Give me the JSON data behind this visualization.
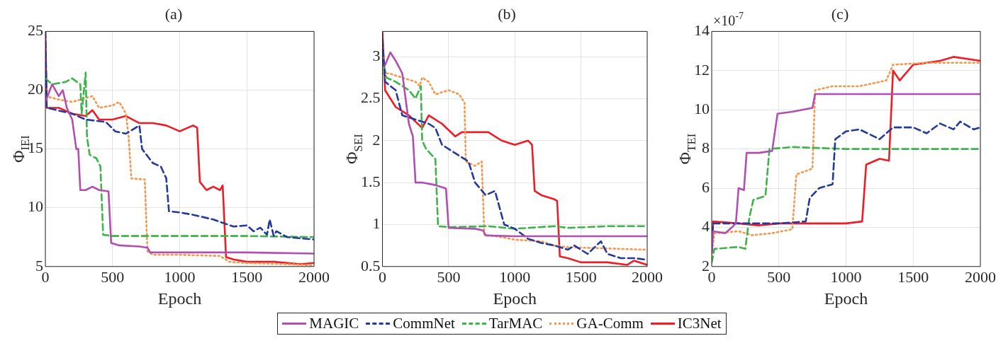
{
  "chart_data": [
    {
      "type": "line",
      "title": "(a)",
      "xlabel": "Epoch",
      "ylabel": "Φ$_{IEI}$",
      "xlim": [
        0,
        2000
      ],
      "xticks": [
        0,
        500,
        1000,
        1500,
        2000
      ],
      "ylim": [
        5,
        25
      ],
      "yticks": [
        5,
        10,
        15,
        20,
        25
      ],
      "grid": true,
      "legend": "bottom",
      "marker": "none",
      "series": [
        {
          "name": "MAGIC",
          "color": "#b04fb0",
          "line_style": "solid",
          "x": [
            0,
            50,
            100,
            130,
            160,
            200,
            230,
            245,
            260,
            300,
            350,
            400,
            470,
            490,
            550,
            700,
            760,
            780,
            1000,
            1500,
            2000
          ],
          "values": [
            19,
            20.5,
            19.5,
            20,
            18.5,
            17.5,
            15,
            15,
            11.5,
            11.5,
            11.8,
            11.5,
            11.4,
            7,
            6.8,
            6.7,
            6.6,
            6.2,
            6.2,
            6.2,
            6.1
          ]
        },
        {
          "name": "CommNet",
          "color": "#23399b",
          "line_style": "dashed",
          "x": [
            0,
            10,
            200,
            300,
            450,
            520,
            600,
            700,
            720,
            800,
            860,
            900,
            920,
            1000,
            1100,
            1250,
            1300,
            1400,
            1500,
            1550,
            1600,
            1650,
            1670,
            1700,
            1720,
            1800,
            2000
          ],
          "values": [
            25,
            18.5,
            18,
            17.5,
            17.3,
            16.5,
            16.3,
            17,
            15,
            13.8,
            13.5,
            12.5,
            9.7,
            9.6,
            9.4,
            9,
            8.8,
            8.4,
            8.5,
            8,
            8.3,
            7.7,
            9,
            7.6,
            8,
            7.5,
            7.3
          ]
        },
        {
          "name": "TarMAC",
          "color": "#3cb44a",
          "line_style": "dashed",
          "x": [
            0,
            50,
            150,
            200,
            260,
            270,
            300,
            310,
            330,
            380,
            410,
            430,
            500,
            1000,
            1500,
            2000
          ],
          "values": [
            21,
            20.5,
            20.7,
            21,
            20.5,
            18,
            21.5,
            16,
            14.5,
            14.2,
            13.5,
            7.7,
            7.6,
            7.6,
            7.6,
            7.5
          ]
        },
        {
          "name": "GA-Comm",
          "color": "#f5964b",
          "line_style": "dotted",
          "x": [
            0,
            100,
            200,
            350,
            400,
            500,
            550,
            600,
            620,
            640,
            740,
            760,
            800,
            1000,
            1300,
            1370,
            1500,
            1800,
            2000
          ],
          "values": [
            19.5,
            19.2,
            19,
            19.5,
            18.5,
            18.7,
            19,
            18,
            16,
            12.5,
            12.4,
            6.3,
            6,
            6,
            5.9,
            5.4,
            5.3,
            5.2,
            5.1
          ]
        },
        {
          "name": "IC3Net",
          "color": "#ee1c24",
          "line_style": "solid",
          "x": [
            0,
            10,
            100,
            200,
            300,
            350,
            400,
            500,
            600,
            700,
            800,
            900,
            1000,
            1100,
            1130,
            1150,
            1200,
            1250,
            1300,
            1320,
            1345,
            1400,
            1500,
            1700,
            1900,
            2000
          ],
          "values": [
            25,
            18.5,
            18.5,
            18,
            17.8,
            18.3,
            17.5,
            17.5,
            17.8,
            17.2,
            17.2,
            17,
            16.5,
            17,
            16.8,
            12.2,
            11.5,
            11.8,
            11.5,
            11.9,
            5.8,
            5.6,
            5.4,
            5.4,
            5.2,
            5.3
          ]
        }
      ]
    },
    {
      "type": "line",
      "title": "(b)",
      "xlabel": "Epoch",
      "ylabel": "Φ$_{SEI}$",
      "xlim": [
        0,
        2000
      ],
      "xticks": [
        0,
        500,
        1000,
        1500,
        2000
      ],
      "ylim": [
        0.5,
        3.3
      ],
      "yticks": [
        0.5,
        1,
        1.5,
        2,
        2.5,
        3
      ],
      "grid": true,
      "marker": "none",
      "series": [
        {
          "color": "#b04fb0",
          "line_style": "solid",
          "x": [
            20,
            60,
            100,
            150,
            200,
            230,
            250,
            300,
            400,
            480,
            500,
            700,
            760,
            780,
            1000,
            1500,
            2000
          ],
          "values": [
            2.9,
            3.05,
            2.95,
            2.8,
            2.2,
            2.05,
            1.5,
            1.5,
            1.47,
            1.43,
            0.96,
            0.95,
            0.93,
            0.87,
            0.86,
            0.86,
            0.86
          ]
        },
        {
          "color": "#23399b",
          "line_style": "dashed",
          "x": [
            0,
            20,
            100,
            150,
            250,
            350,
            400,
            450,
            500,
            600,
            650,
            700,
            780,
            850,
            920,
            1000,
            1100,
            1200,
            1300,
            1400,
            1450,
            1550,
            1650,
            1700,
            1800,
            1900,
            2000
          ],
          "values": [
            3.2,
            2.7,
            2.6,
            2.3,
            2.25,
            2.2,
            2.15,
            1.95,
            1.9,
            1.8,
            1.75,
            1.5,
            1.35,
            1.4,
            1,
            0.95,
            0.83,
            0.78,
            0.75,
            0.7,
            0.75,
            0.65,
            0.8,
            0.65,
            0.6,
            0.6,
            0.58
          ]
        },
        {
          "color": "#3cb44a",
          "line_style": "dashed",
          "x": [
            0,
            30,
            100,
            200,
            250,
            290,
            300,
            330,
            400,
            420,
            500,
            800,
            1000,
            1300,
            1400,
            1700,
            2000
          ],
          "values": [
            3,
            2.75,
            2.7,
            2.6,
            2.5,
            2.65,
            2,
            1.9,
            1.78,
            0.98,
            0.97,
            0.98,
            0.95,
            0.98,
            0.96,
            0.98,
            0.98
          ]
        },
        {
          "color": "#f5964b",
          "line_style": "dotted",
          "x": [
            0,
            50,
            150,
            250,
            280,
            300,
            350,
            400,
            500,
            580,
            620,
            630,
            700,
            750,
            770,
            900,
            1000,
            1200,
            1300,
            1400,
            1600,
            2000
          ],
          "values": [
            2.8,
            2.8,
            2.75,
            2.7,
            2.65,
            2.75,
            2.7,
            2.55,
            2.6,
            2.55,
            2.45,
            1.75,
            1.7,
            1.75,
            0.88,
            0.85,
            0.82,
            0.8,
            0.75,
            0.73,
            0.72,
            0.7
          ]
        },
        {
          "color": "#ee1c24",
          "line_style": "solid",
          "x": [
            0,
            20,
            100,
            200,
            300,
            350,
            450,
            550,
            600,
            800,
            900,
            1000,
            1100,
            1130,
            1150,
            1200,
            1300,
            1320,
            1340,
            1400,
            1500,
            1700,
            1850,
            1900,
            2000
          ],
          "values": [
            3.3,
            2.6,
            2.4,
            2.3,
            2.15,
            2.3,
            2.2,
            2.05,
            2.1,
            2.1,
            2,
            1.95,
            2,
            1.95,
            1.4,
            1.35,
            1.3,
            1.28,
            0.62,
            0.6,
            0.55,
            0.55,
            0.52,
            0.57,
            0.52
          ]
        }
      ]
    },
    {
      "type": "line",
      "title": "(c)",
      "xlabel": "Epoch",
      "ylabel": "Φ$_{TEI}$",
      "annotations": [
        "×10$^{-7}$"
      ],
      "xlim": [
        0,
        2000
      ],
      "xticks": [
        0,
        500,
        1000,
        1500,
        2000
      ],
      "ylim": [
        2,
        14
      ],
      "yticks": [
        2,
        4,
        6,
        8,
        10,
        12,
        14
      ],
      "grid": true,
      "marker": "none",
      "series": [
        {
          "color": "#b04fb0",
          "line_style": "solid",
          "x": [
            0,
            10,
            100,
            150,
            180,
            200,
            240,
            260,
            350,
            450,
            490,
            600,
            750,
            770,
            1000,
            1500,
            2000
          ],
          "values": [
            2.7,
            3.8,
            3.7,
            4,
            4.2,
            6,
            5.9,
            7.8,
            7.8,
            7.9,
            9.8,
            9.9,
            10.1,
            10.8,
            10.8,
            10.8,
            10.8
          ]
        },
        {
          "color": "#23399b",
          "line_style": "dashed",
          "x": [
            0,
            10,
            500,
            700,
            730,
            800,
            900,
            920,
            1000,
            1100,
            1250,
            1350,
            1500,
            1600,
            1700,
            1800,
            1850,
            1950,
            2000
          ],
          "values": [
            2.7,
            4.2,
            4.2,
            4.3,
            5.5,
            6,
            6.2,
            8.5,
            8.9,
            9,
            8.5,
            9.1,
            9.1,
            8.8,
            9.3,
            9,
            9.4,
            9,
            9.1
          ]
        },
        {
          "color": "#3cb44a",
          "line_style": "dashed",
          "x": [
            0,
            20,
            200,
            250,
            280,
            310,
            400,
            430,
            600,
            1000,
            1500,
            2000
          ],
          "values": [
            2.2,
            2.9,
            3,
            2.9,
            4.5,
            5.4,
            5.6,
            8,
            8.1,
            8,
            8,
            8
          ]
        },
        {
          "color": "#f5964b",
          "line_style": "dotted",
          "x": [
            0,
            20,
            200,
            300,
            450,
            600,
            630,
            750,
            770,
            900,
            1100,
            1300,
            1350,
            1600,
            2000
          ],
          "values": [
            2.6,
            3.7,
            3.8,
            3.6,
            3.7,
            3.9,
            6.7,
            7,
            11,
            11.2,
            11.2,
            11.5,
            12.3,
            12.4,
            12.4
          ]
        },
        {
          "color": "#ee1c24",
          "line_style": "solid",
          "x": [
            0,
            10,
            200,
            350,
            500,
            1000,
            1120,
            1150,
            1250,
            1320,
            1350,
            1400,
            1500,
            1700,
            1800,
            2000
          ],
          "values": [
            2.8,
            4.3,
            4.2,
            4.1,
            4.2,
            4.2,
            4.3,
            7.2,
            7.5,
            7.4,
            12,
            11.5,
            12.3,
            12.5,
            12.7,
            12.5
          ]
        }
      ]
    }
  ]
}
